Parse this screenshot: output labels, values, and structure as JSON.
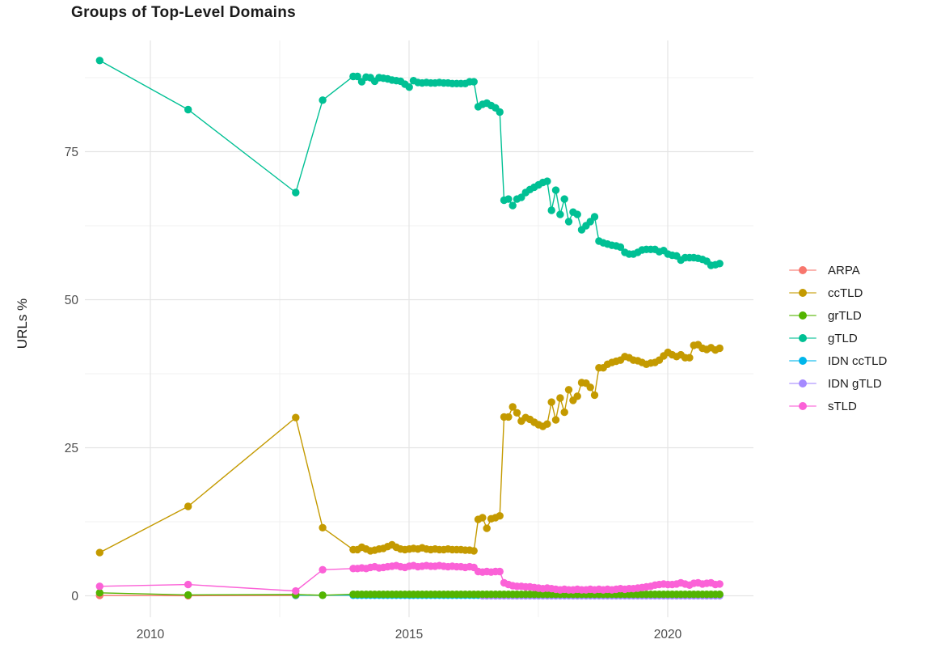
{
  "page": {
    "background": "#ffffff"
  },
  "chart_data": {
    "type": "line",
    "title": "Groups of Top-Level Domains",
    "xlabel": "",
    "ylabel": "URLs %",
    "grid": true,
    "legend_position": "right",
    "x_axis": {
      "ticks": [
        2010,
        2015,
        2020
      ],
      "tick_labels": [
        "2010",
        "2015",
        "2020"
      ],
      "minor": [
        2012.5,
        2017.5
      ],
      "range": [
        2008.73,
        2021.66
      ]
    },
    "y_axis": {
      "ticks": [
        0,
        25,
        50,
        75
      ],
      "tick_labels": [
        "0",
        "25",
        "50",
        "75"
      ],
      "minor": [
        12.5,
        37.5,
        62.5,
        87.5
      ],
      "range": [
        -4.3,
        93.8
      ]
    },
    "draw_order": [
      0,
      4,
      5,
      2,
      1,
      3,
      6
    ],
    "series": [
      {
        "name": "ARPA",
        "color": "#F8766D",
        "sparse": [
          [
            2009.02,
            0.05
          ],
          [
            2010.73,
            0.02
          ],
          [
            2012.81,
            0.05
          ]
        ]
      },
      {
        "name": "ccTLD",
        "color": "#C49A00",
        "sparse": [
          [
            2009.02,
            7.3
          ],
          [
            2010.73,
            15.1
          ],
          [
            2012.81,
            30.1
          ],
          [
            2013.33,
            11.5
          ]
        ],
        "dense_start": 2013.92,
        "dense_step": 0.083333,
        "dense": [
          7.8,
          7.8,
          8.2,
          7.9,
          7.6,
          7.7,
          7.9,
          8.0,
          8.3,
          8.6,
          8.2,
          7.9,
          7.8,
          7.9,
          8.0,
          7.9,
          8.1,
          7.9,
          7.8,
          7.9,
          7.8,
          7.8,
          7.9,
          7.8,
          7.8,
          7.8,
          7.7,
          7.7,
          7.6,
          12.9,
          13.2,
          11.4,
          13.0,
          13.2,
          13.5,
          30.2,
          30.2,
          31.9,
          30.9,
          29.5,
          30.1,
          29.8,
          29.3,
          28.9,
          28.6,
          29.0,
          32.7,
          29.7,
          33.4,
          31.0,
          34.8,
          33.0,
          33.7,
          36.0,
          35.9,
          35.2,
          33.9,
          38.5,
          38.5,
          39.1,
          39.4,
          39.6,
          39.8,
          40.4,
          40.2,
          39.8,
          39.7,
          39.4,
          39.1,
          39.3,
          39.4,
          39.8,
          40.5,
          41.1,
          40.7,
          40.4,
          40.7,
          40.2,
          40.2,
          42.3,
          42.4,
          41.8,
          41.6,
          41.9,
          41.5,
          41.8
        ]
      },
      {
        "name": "grTLD",
        "color": "#53B400",
        "sparse": [
          [
            2009.02,
            0.5
          ],
          [
            2010.73,
            0.15
          ],
          [
            2012.81,
            0.2
          ],
          [
            2013.33,
            0.1
          ]
        ],
        "dense_start": 2013.92,
        "dense_step": 0.083333,
        "dense_const": {
          "value": 0.25,
          "count": 86
        }
      },
      {
        "name": "gTLD",
        "color": "#00C094",
        "sparse": [
          [
            2009.02,
            90.4
          ],
          [
            2010.73,
            82.1
          ],
          [
            2012.81,
            68.1
          ],
          [
            2013.33,
            83.7
          ]
        ],
        "dense_start": 2013.92,
        "dense_step": 0.083333,
        "dense": [
          87.7,
          87.7,
          86.8,
          87.6,
          87.5,
          86.9,
          87.5,
          87.4,
          87.3,
          87.1,
          87.0,
          86.9,
          86.4,
          85.9,
          87.0,
          86.7,
          86.6,
          86.7,
          86.6,
          86.6,
          86.7,
          86.6,
          86.6,
          86.5,
          86.5,
          86.5,
          86.5,
          86.8,
          86.8,
          82.6,
          83.0,
          83.2,
          82.8,
          82.4,
          81.7,
          66.8,
          67.0,
          65.9,
          67.0,
          67.3,
          68.1,
          68.6,
          69.0,
          69.4,
          69.8,
          70.0,
          65.1,
          68.5,
          64.4,
          67.0,
          63.2,
          64.8,
          64.4,
          61.8,
          62.5,
          63.2,
          64.0,
          59.9,
          59.6,
          59.4,
          59.2,
          59.1,
          58.9,
          58.0,
          57.7,
          57.7,
          58.0,
          58.4,
          58.5,
          58.5,
          58.5,
          58.1,
          58.3,
          57.7,
          57.5,
          57.4,
          56.7,
          57.1,
          57.1,
          57.1,
          57.0,
          56.8,
          56.5,
          55.8,
          55.9,
          56.1
        ]
      },
      {
        "name": "IDN ccTLD",
        "color": "#00B6EB",
        "sparse": [
          [
            2012.81,
            0.1
          ],
          [
            2013.33,
            0.1
          ]
        ],
        "dense_start": 2013.92,
        "dense_step": 0.083333,
        "dense_const": {
          "value": 0.1,
          "count": 86
        }
      },
      {
        "name": "IDN gTLD",
        "color": "#A58AFF",
        "dense_start": 2016.42,
        "dense_step": 0.083333,
        "dense_const": {
          "value": 0.02,
          "count": 56
        }
      },
      {
        "name": "sTLD",
        "color": "#FB61D7",
        "sparse": [
          [
            2009.02,
            1.6
          ],
          [
            2010.73,
            1.9
          ],
          [
            2012.81,
            0.8
          ],
          [
            2013.33,
            4.4
          ]
        ],
        "dense_start": 2013.92,
        "dense_step": 0.083333,
        "dense": [
          4.6,
          4.6,
          4.7,
          4.6,
          4.8,
          4.9,
          4.7,
          4.8,
          4.9,
          5.0,
          5.1,
          4.9,
          4.8,
          5.0,
          5.1,
          4.9,
          5.0,
          5.1,
          5.0,
          5.0,
          5.1,
          5.0,
          4.9,
          5.0,
          4.9,
          4.9,
          4.8,
          4.9,
          4.8,
          4.1,
          4.0,
          4.1,
          4.0,
          4.1,
          4.1,
          2.2,
          1.9,
          1.7,
          1.6,
          1.6,
          1.5,
          1.5,
          1.4,
          1.3,
          1.2,
          1.3,
          1.2,
          1.1,
          1.0,
          1.1,
          1.0,
          1.0,
          1.1,
          1.0,
          1.0,
          1.1,
          1.0,
          1.1,
          1.0,
          1.1,
          1.0,
          1.1,
          1.2,
          1.1,
          1.2,
          1.2,
          1.3,
          1.4,
          1.5,
          1.6,
          1.8,
          1.9,
          2.0,
          1.9,
          1.9,
          2.0,
          2.2,
          2.0,
          1.8,
          2.1,
          2.2,
          2.0,
          2.1,
          2.2,
          1.9,
          2.0
        ]
      }
    ]
  }
}
